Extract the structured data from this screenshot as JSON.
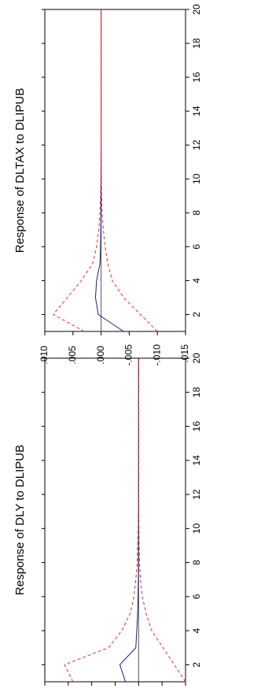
{
  "chart_data": [
    {
      "type": "line",
      "title": "Response of DLY to DLIPUB",
      "xlabel": "",
      "ylabel": "",
      "x": [
        1,
        2,
        3,
        4,
        5,
        6,
        7,
        8,
        9,
        10,
        11,
        12,
        13,
        14,
        15,
        16,
        17,
        18,
        19,
        20
      ],
      "xlim": [
        1,
        20
      ],
      "ylim": [
        -0.005,
        0.01
      ],
      "x_ticks": [
        2,
        4,
        6,
        8,
        10,
        12,
        14,
        16,
        18,
        20
      ],
      "x_tick_labels": [
        "2",
        "4",
        "6",
        "8",
        "10",
        "12",
        "14",
        "16",
        "18",
        "20"
      ],
      "y_ticks": [
        0.01,
        0.0075,
        0.005,
        0.0025,
        0.0,
        -0.0025,
        -0.005
      ],
      "y_tick_labels": [
        ".0100",
        ".0075",
        ".0050",
        ".0025",
        ".0000",
        "-.0025",
        "-.0050"
      ],
      "orientation": "rotated 90 degrees counter-clockwise",
      "zero_line": true,
      "grid": false,
      "legend": "none",
      "series": [
        {
          "role": "response",
          "color": "#1a1a8c",
          "style": "solid",
          "values": [
            0.0014,
            0.002,
            0.0003,
            0.0002,
            0.0001,
            6e-05,
            3e-05,
            2e-05,
            1e-05,
            0,
            0,
            0,
            0,
            0,
            0,
            0,
            0,
            0,
            0,
            0
          ]
        },
        {
          "role": "upper band",
          "color": "#e8322a",
          "style": "dashed",
          "values": [
            0.007,
            0.0079,
            0.0032,
            0.0018,
            0.0009,
            0.0005,
            0.0003,
            0.00015,
            0.0001,
            5e-05,
            3e-05,
            2e-05,
            1e-05,
            0,
            0,
            0,
            0,
            0,
            0,
            0
          ]
        },
        {
          "role": "lower band",
          "color": "#e8322a",
          "style": "dashed",
          "values": [
            -0.005,
            -0.0038,
            -0.0026,
            -0.0014,
            -0.0008,
            -0.0004,
            -0.0002,
            -0.0001,
            -5e-05,
            -3e-05,
            -2e-05,
            -1e-05,
            0,
            0,
            0,
            0,
            0,
            0,
            0,
            0
          ]
        }
      ]
    },
    {
      "type": "line",
      "title": "Response of DLTAX to DLIPUB",
      "xlabel": "",
      "ylabel": "",
      "x": [
        1,
        2,
        3,
        4,
        5,
        6,
        7,
        8,
        9,
        10,
        11,
        12,
        13,
        14,
        15,
        16,
        17,
        18,
        19,
        20
      ],
      "xlim": [
        1,
        20
      ],
      "ylim": [
        -0.015,
        0.01
      ],
      "x_ticks": [
        2,
        4,
        6,
        8,
        10,
        12,
        14,
        16,
        18,
        20
      ],
      "x_tick_labels": [
        "2",
        "4",
        "6",
        "8",
        "10",
        "12",
        "14",
        "16",
        "18",
        "20"
      ],
      "y_ticks": [
        0.01,
        0.005,
        0.0,
        -0.005,
        -0.01,
        -0.015
      ],
      "y_tick_labels": [
        ".010",
        ".005",
        ".000",
        "-.005",
        "-.010",
        "-.015"
      ],
      "orientation": "rotated 90 degrees counter-clockwise",
      "zero_line": true,
      "grid": false,
      "legend": "none",
      "series": [
        {
          "role": "response",
          "color": "#1a1a8c",
          "style": "solid",
          "values": [
            -0.004,
            0.0005,
            0.001,
            0.0008,
            0.0002,
            0.0001,
            5e-05,
            2e-05,
            1e-05,
            0,
            0,
            0,
            0,
            0,
            0,
            0,
            0,
            0,
            0,
            0
          ]
        },
        {
          "role": "upper band",
          "color": "#e8322a",
          "style": "dashed",
          "values": [
            0.003,
            0.0085,
            0.006,
            0.0035,
            0.0015,
            0.0008,
            0.0004,
            0.0002,
            0.0001,
            5e-05,
            3e-05,
            2e-05,
            1e-05,
            0,
            0,
            0,
            0,
            0,
            0,
            0
          ]
        },
        {
          "role": "lower band",
          "color": "#e8322a",
          "style": "dashed",
          "values": [
            -0.01,
            -0.007,
            -0.004,
            -0.002,
            -0.0012,
            -0.0007,
            -0.0004,
            -0.0002,
            -0.0001,
            -5e-05,
            -3e-05,
            -1e-05,
            0,
            0,
            0,
            0,
            0,
            0,
            0,
            0
          ]
        }
      ]
    }
  ],
  "colors": {
    "zero_line": "#555555",
    "axis": "#000000"
  }
}
